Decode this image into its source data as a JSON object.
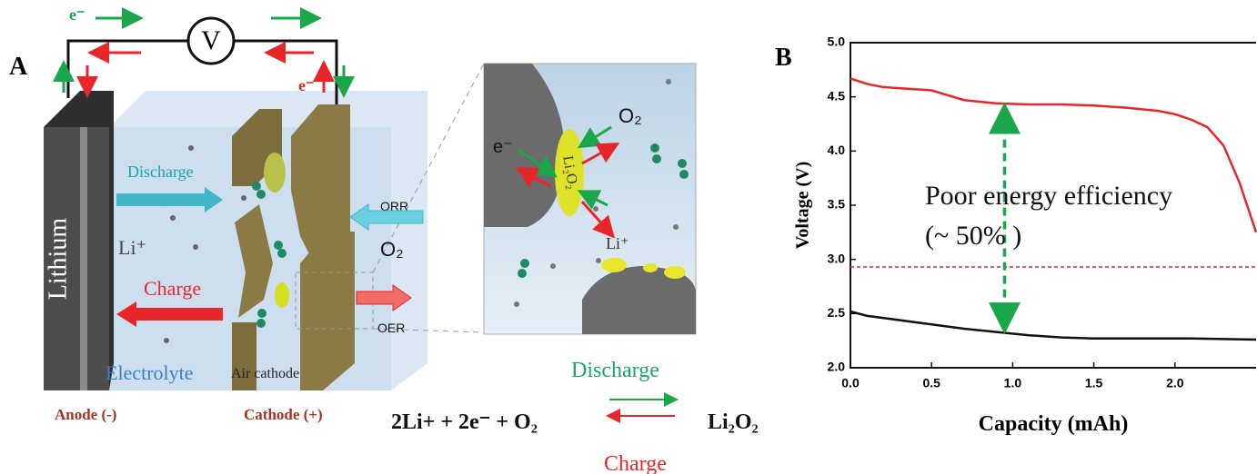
{
  "panel_a": {
    "label": "A",
    "circuit": {
      "electron_left": "e⁻",
      "voltmeter": "V",
      "electron_right": "e⁻"
    },
    "cell": {
      "anode": "Lithium",
      "discharge": "Discharge",
      "li_ion": "Li⁺",
      "charge": "Charge",
      "electrolyte": "Electrolyte",
      "air_cathode": "Air cathode",
      "orr": "ORR",
      "oxygen": "O₂",
      "oer": "OER"
    },
    "electrodes": {
      "anode": "Anode (-)",
      "cathode": "Cathode (+)"
    },
    "inset": {
      "electron": "e⁻",
      "product": "Li₂O₂",
      "oxygen": "O₂",
      "li_ion": "Li⁺"
    },
    "equation": {
      "reactants": "2Li+ + 2e⁻ + O₂",
      "product": "Li₂O₂",
      "forward": "Discharge",
      "reverse": "Charge"
    }
  },
  "chart_data": {
    "type": "line",
    "panel_label": "B",
    "x_label": "Capacity (mAh)",
    "y_label": "Voltage (V)",
    "xlim": [
      0,
      2.5
    ],
    "ylim": [
      2.0,
      5.0
    ],
    "xticks": [
      {
        "value": 0,
        "label": "0.0"
      },
      0.5,
      {
        "value": 1,
        "label": "1.0"
      },
      1.5,
      {
        "value": 2,
        "label": "2.0"
      }
    ],
    "yticks": [
      {
        "value": 2,
        "label": "2.0"
      },
      2.5,
      {
        "value": 3,
        "label": "3.0"
      },
      3.5,
      {
        "value": 4,
        "label": "4.0"
      },
      4.5,
      {
        "value": 5,
        "label": "5.0"
      }
    ],
    "series": [
      {
        "color": "#e8262a",
        "x": [
          0,
          0.1,
          0.2,
          0.3,
          0.5,
          0.7,
          0.9,
          1.1,
          1.3,
          1.5,
          1.7,
          1.9,
          2.0,
          2.1,
          2.2,
          2.3,
          2.4,
          2.5
        ],
        "values": [
          4.67,
          4.62,
          4.59,
          4.58,
          4.56,
          4.47,
          4.44,
          4.43,
          4.43,
          4.42,
          4.4,
          4.37,
          4.34,
          4.29,
          4.22,
          4.05,
          3.7,
          3.25
        ]
      },
      {
        "color": "#111111",
        "x": [
          0,
          0.1,
          0.3,
          0.5,
          0.7,
          0.9,
          1.1,
          1.3,
          1.5,
          1.8,
          2.1,
          2.5
        ],
        "values": [
          2.52,
          2.48,
          2.44,
          2.4,
          2.36,
          2.33,
          2.3,
          2.28,
          2.27,
          2.27,
          2.27,
          2.26
        ]
      }
    ],
    "hlines": [
      {
        "value": 2.93,
        "color": "#e8262a"
      }
    ],
    "arrow": {
      "x": 0.95,
      "y": [
        2.33,
        4.43
      ],
      "color": "#1aa64a"
    },
    "annotations": [
      "Poor  energy efficiency",
      "(~ 50% )"
    ]
  }
}
